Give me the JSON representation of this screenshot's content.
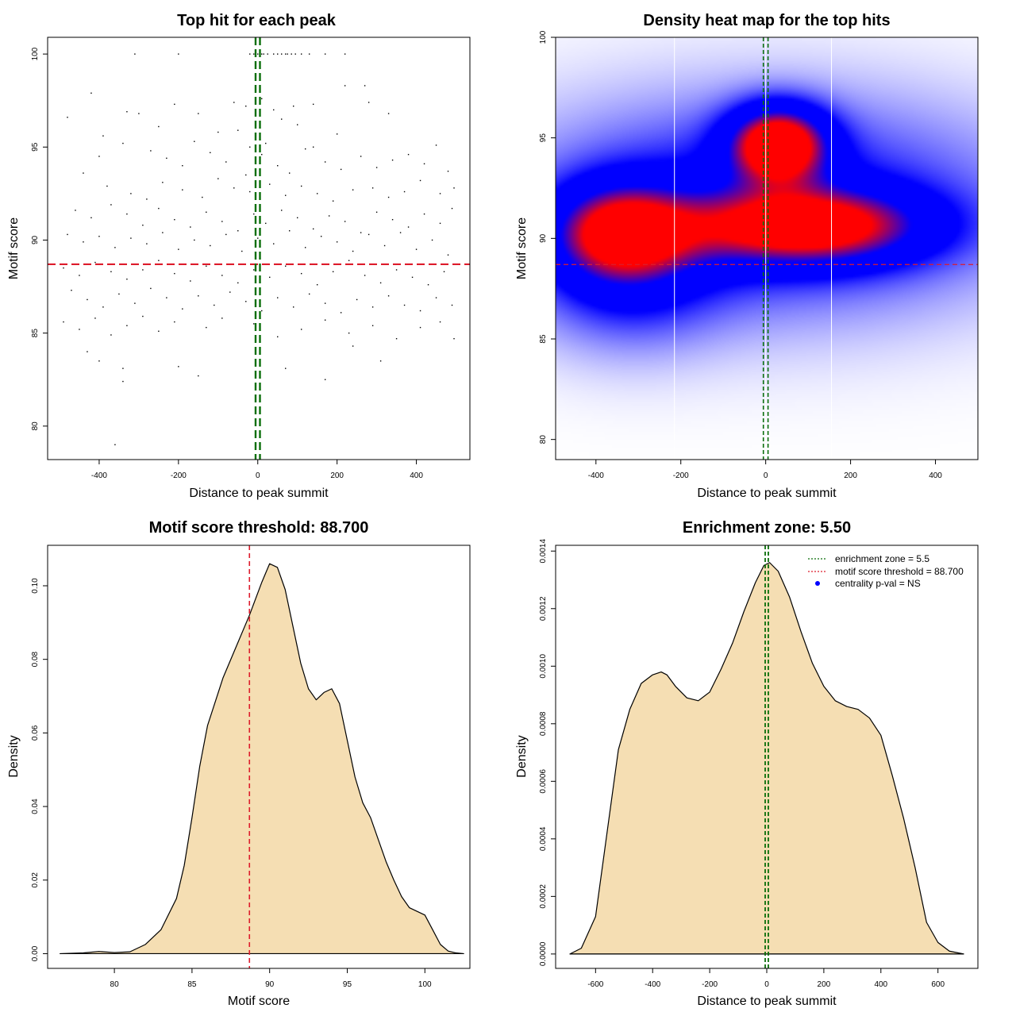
{
  "chart_data": [
    {
      "type": "scatter",
      "title": "Top hit for each peak",
      "xlabel": "Distance to peak summit",
      "ylabel": "Motif score",
      "xlim": [
        -530,
        535
      ],
      "ylim": [
        78.2,
        100.9
      ],
      "x_ticks": [
        -400,
        -200,
        0,
        200,
        400
      ],
      "y_ticks": [
        80,
        85,
        90,
        95,
        100
      ],
      "score_threshold": 88.7,
      "enrichment_zone": [
        -5.5,
        5.5
      ],
      "threshold_color": "#dd1c2c",
      "zone_color": "#0a6e0a",
      "point_color": "#000000",
      "points": [
        [
          -310,
          100
        ],
        [
          -200,
          100
        ],
        [
          -20,
          100
        ],
        [
          -10,
          100
        ],
        [
          -5,
          100
        ],
        [
          0,
          100
        ],
        [
          5,
          100
        ],
        [
          10,
          100
        ],
        [
          15,
          100
        ],
        [
          25,
          100
        ],
        [
          40,
          100
        ],
        [
          50,
          100
        ],
        [
          60,
          100
        ],
        [
          70,
          100
        ],
        [
          75,
          100
        ],
        [
          85,
          100
        ],
        [
          95,
          100
        ],
        [
          110,
          100
        ],
        [
          130,
          100
        ],
        [
          170,
          100
        ],
        [
          220,
          100
        ],
        [
          -420,
          97.9
        ],
        [
          -210,
          97.3
        ],
        [
          -60,
          97.4
        ],
        [
          -30,
          97.2
        ],
        [
          10,
          97.6
        ],
        [
          40,
          97.0
        ],
        [
          90,
          97.2
        ],
        [
          140,
          97.3
        ],
        [
          220,
          98.3
        ],
        [
          270,
          98.3
        ],
        [
          280,
          97.4
        ],
        [
          330,
          96.8
        ],
        [
          -480,
          96.6
        ],
        [
          -390,
          95.6
        ],
        [
          -330,
          96.9
        ],
        [
          -300,
          96.8
        ],
        [
          -250,
          96.1
        ],
        [
          -150,
          96.8
        ],
        [
          -100,
          95.8
        ],
        [
          -50,
          95.9
        ],
        [
          -20,
          95.0
        ],
        [
          20,
          95.2
        ],
        [
          60,
          96.5
        ],
        [
          100,
          96.2
        ],
        [
          140,
          95.0
        ],
        [
          200,
          95.7
        ],
        [
          -400,
          94.5
        ],
        [
          -340,
          95.2
        ],
        [
          -270,
          94.8
        ],
        [
          -230,
          94.4
        ],
        [
          -190,
          94.0
        ],
        [
          -160,
          95.3
        ],
        [
          -120,
          94.7
        ],
        [
          -80,
          94.2
        ],
        [
          -30,
          93.5
        ],
        [
          10,
          94.6
        ],
        [
          50,
          94.0
        ],
        [
          80,
          93.6
        ],
        [
          120,
          94.9
        ],
        [
          170,
          94.2
        ],
        [
          210,
          93.8
        ],
        [
          260,
          94.5
        ],
        [
          300,
          93.9
        ],
        [
          340,
          94.3
        ],
        [
          380,
          94.6
        ],
        [
          420,
          94.1
        ],
        [
          450,
          95.1
        ],
        [
          480,
          93.7
        ],
        [
          -440,
          93.6
        ],
        [
          -380,
          92.9
        ],
        [
          -320,
          92.5
        ],
        [
          -280,
          92.2
        ],
        [
          -240,
          93.1
        ],
        [
          -190,
          92.7
        ],
        [
          -140,
          92.3
        ],
        [
          -100,
          93.3
        ],
        [
          -60,
          92.8
        ],
        [
          -20,
          92.6
        ],
        [
          30,
          93.0
        ],
        [
          70,
          92.4
        ],
        [
          110,
          92.9
        ],
        [
          150,
          92.5
        ],
        [
          190,
          92.1
        ],
        [
          240,
          92.7
        ],
        [
          290,
          92.8
        ],
        [
          330,
          92.3
        ],
        [
          370,
          92.6
        ],
        [
          410,
          93.2
        ],
        [
          460,
          92.5
        ],
        [
          495,
          92.8
        ],
        [
          -460,
          91.6
        ],
        [
          -420,
          91.2
        ],
        [
          -370,
          91.9
        ],
        [
          -330,
          91.4
        ],
        [
          -290,
          90.8
        ],
        [
          -250,
          91.7
        ],
        [
          -210,
          91.1
        ],
        [
          -170,
          90.7
        ],
        [
          -130,
          91.5
        ],
        [
          -90,
          91.0
        ],
        [
          -50,
          90.5
        ],
        [
          -10,
          91.4
        ],
        [
          20,
          90.9
        ],
        [
          60,
          91.6
        ],
        [
          100,
          91.2
        ],
        [
          140,
          90.6
        ],
        [
          180,
          91.3
        ],
        [
          220,
          91.0
        ],
        [
          260,
          90.4
        ],
        [
          300,
          91.5
        ],
        [
          340,
          91.1
        ],
        [
          380,
          90.7
        ],
        [
          420,
          91.4
        ],
        [
          460,
          90.9
        ],
        [
          490,
          91.7
        ],
        [
          -480,
          90.3
        ],
        [
          -440,
          89.9
        ],
        [
          -400,
          90.2
        ],
        [
          -360,
          89.6
        ],
        [
          -320,
          90.1
        ],
        [
          -280,
          89.8
        ],
        [
          -240,
          90.4
        ],
        [
          -200,
          89.5
        ],
        [
          -160,
          90.0
        ],
        [
          -120,
          89.7
        ],
        [
          -80,
          90.3
        ],
        [
          -40,
          89.4
        ],
        [
          0,
          90.1
        ],
        [
          40,
          89.8
        ],
        [
          80,
          90.5
        ],
        [
          120,
          89.6
        ],
        [
          160,
          90.2
        ],
        [
          200,
          89.9
        ],
        [
          240,
          89.4
        ],
        [
          280,
          90.3
        ],
        [
          320,
          89.7
        ],
        [
          360,
          90.4
        ],
        [
          400,
          89.5
        ],
        [
          440,
          90.0
        ],
        [
          480,
          89.2
        ],
        [
          -490,
          88.5
        ],
        [
          -450,
          88.1
        ],
        [
          -410,
          88.8
        ],
        [
          -370,
          88.3
        ],
        [
          -330,
          87.9
        ],
        [
          -290,
          88.4
        ],
        [
          -250,
          88.9
        ],
        [
          -210,
          88.2
        ],
        [
          -170,
          87.8
        ],
        [
          -130,
          88.6
        ],
        [
          -90,
          88.1
        ],
        [
          -50,
          87.7
        ],
        [
          -10,
          88.4
        ],
        [
          30,
          88.0
        ],
        [
          70,
          88.6
        ],
        [
          110,
          88.2
        ],
        [
          150,
          87.6
        ],
        [
          190,
          88.3
        ],
        [
          230,
          88.9
        ],
        [
          270,
          88.1
        ],
        [
          310,
          87.7
        ],
        [
          350,
          88.4
        ],
        [
          390,
          88.0
        ],
        [
          430,
          87.6
        ],
        [
          470,
          88.3
        ],
        [
          -470,
          87.3
        ],
        [
          -430,
          86.8
        ],
        [
          -390,
          86.4
        ],
        [
          -350,
          87.1
        ],
        [
          -310,
          86.6
        ],
        [
          -270,
          87.4
        ],
        [
          -230,
          86.9
        ],
        [
          -190,
          86.3
        ],
        [
          -150,
          87.0
        ],
        [
          -110,
          86.5
        ],
        [
          -70,
          87.2
        ],
        [
          -30,
          86.7
        ],
        [
          10,
          86.2
        ],
        [
          50,
          86.9
        ],
        [
          90,
          86.4
        ],
        [
          130,
          87.1
        ],
        [
          170,
          86.6
        ],
        [
          210,
          86.1
        ],
        [
          250,
          86.8
        ],
        [
          290,
          86.4
        ],
        [
          330,
          87.0
        ],
        [
          370,
          86.5
        ],
        [
          410,
          86.2
        ],
        [
          450,
          86.9
        ],
        [
          490,
          86.5
        ],
        [
          -490,
          85.6
        ],
        [
          -450,
          85.2
        ],
        [
          -410,
          85.8
        ],
        [
          -370,
          84.9
        ],
        [
          -330,
          85.4
        ],
        [
          -290,
          85.9
        ],
        [
          -250,
          85.1
        ],
        [
          -210,
          85.6
        ],
        [
          -130,
          85.3
        ],
        [
          -90,
          85.8
        ],
        [
          -10,
          85.5
        ],
        [
          50,
          84.8
        ],
        [
          110,
          85.2
        ],
        [
          170,
          85.7
        ],
        [
          230,
          85.0
        ],
        [
          290,
          85.4
        ],
        [
          350,
          84.7
        ],
        [
          410,
          85.3
        ],
        [
          460,
          85.6
        ],
        [
          495,
          84.7
        ],
        [
          -430,
          84.0
        ],
        [
          -400,
          83.5
        ],
        [
          -340,
          83.1
        ],
        [
          -340,
          82.4
        ],
        [
          -200,
          83.2
        ],
        [
          -150,
          82.7
        ],
        [
          -5,
          82.6
        ],
        [
          70,
          83.1
        ],
        [
          170,
          82.5
        ],
        [
          240,
          84.3
        ],
        [
          310,
          83.5
        ],
        [
          -360,
          79.0
        ]
      ]
    },
    {
      "type": "heatmap",
      "title": "Density heat map for the top hits",
      "xlabel": "Distance to peak summit",
      "ylabel": "Motif score",
      "xlim": [
        -495,
        500
      ],
      "ylim": [
        79.0,
        100.0
      ],
      "x_ticks": [
        -400,
        -200,
        0,
        200,
        400
      ],
      "y_ticks": [
        80,
        85,
        90,
        95,
        100
      ],
      "score_threshold": 88.7,
      "enrichment_zone": [
        -5.5,
        5.5
      ],
      "white_lines_x": [
        -215,
        0,
        155
      ],
      "threshold_color": "#dd1c2c",
      "zone_color": "#0a6e0a",
      "color_low": "#ffffff",
      "color_mid": "#0000ff",
      "color_high": "#ff0000",
      "density_peaks": [
        {
          "x": 30,
          "y": 94.7,
          "sx": 80,
          "sy": 1.3,
          "w": 1.0
        },
        {
          "x": -340,
          "y": 90.3,
          "sx": 110,
          "sy": 1.6,
          "w": 0.72
        },
        {
          "x": 100,
          "y": 90.6,
          "sx": 190,
          "sy": 1.3,
          "w": 0.82
        },
        {
          "x": 0,
          "y": 91.5,
          "sx": 420,
          "sy": 3.8,
          "w": 0.42
        },
        {
          "x": -330,
          "y": 88.3,
          "sx": 150,
          "sy": 2.6,
          "w": 0.28
        }
      ]
    },
    {
      "type": "area",
      "title": "Motif score threshold: 88.700",
      "xlabel": "Motif score",
      "ylabel": "Density",
      "xlim": [
        75.7,
        102.9
      ],
      "ylim": [
        -0.004,
        0.111
      ],
      "x_ticks": [
        80,
        85,
        90,
        95,
        100
      ],
      "y_ticks": [
        0.0,
        0.02,
        0.04,
        0.06,
        0.08,
        0.1
      ],
      "y_tick_labels": [
        "0.00",
        "0.02",
        "0.04",
        "0.06",
        "0.08",
        "0.10"
      ],
      "threshold": 88.7,
      "threshold_color": "#dd1c2c",
      "fill_color": "#f5deb3",
      "x": [
        76.5,
        78.0,
        79.0,
        80.0,
        81.0,
        82.0,
        83.0,
        84.0,
        84.5,
        85.0,
        85.5,
        86.0,
        87.0,
        88.0,
        88.7,
        89.5,
        90.0,
        90.5,
        91.0,
        91.5,
        92.0,
        92.5,
        93.0,
        93.5,
        94.0,
        94.5,
        95.0,
        95.5,
        96.0,
        96.5,
        97.0,
        97.5,
        98.0,
        98.5,
        99.0,
        99.5,
        100.0,
        100.5,
        101.0,
        101.5,
        102.0,
        102.5
      ],
      "y": [
        0.0,
        0.0002,
        0.0006,
        0.0003,
        0.0005,
        0.0025,
        0.0065,
        0.015,
        0.024,
        0.037,
        0.051,
        0.062,
        0.075,
        0.085,
        0.092,
        0.101,
        0.106,
        0.105,
        0.099,
        0.089,
        0.079,
        0.072,
        0.069,
        0.071,
        0.072,
        0.068,
        0.058,
        0.048,
        0.041,
        0.037,
        0.031,
        0.025,
        0.02,
        0.0155,
        0.0125,
        0.0115,
        0.0105,
        0.0065,
        0.0025,
        0.0007,
        0.0002,
        0.0
      ]
    },
    {
      "type": "area",
      "title": "Enrichment zone: 5.50",
      "xlabel": "Distance to peak summit",
      "ylabel": "Density",
      "xlim": [
        -740,
        740
      ],
      "ylim": [
        -5e-05,
        0.00142
      ],
      "x_ticks": [
        -600,
        -400,
        -200,
        0,
        200,
        400,
        600
      ],
      "y_ticks": [
        0.0,
        0.0002,
        0.0004,
        0.0006,
        0.0008,
        0.001,
        0.0012,
        0.0014
      ],
      "y_tick_labels": [
        "0.0000",
        "0.0002",
        "0.0004",
        "0.0006",
        "0.0008",
        "0.0010",
        "0.0012",
        "0.0014"
      ],
      "enrichment_zone": [
        -5.5,
        5.5
      ],
      "zone_color": "#0a6e0a",
      "fill_color": "#f5deb3",
      "x": [
        -690,
        -650,
        -600,
        -560,
        -520,
        -480,
        -440,
        -400,
        -370,
        -350,
        -320,
        -280,
        -240,
        -200,
        -160,
        -120,
        -80,
        -40,
        -10,
        10,
        40,
        80,
        120,
        160,
        200,
        240,
        280,
        320,
        360,
        400,
        440,
        480,
        520,
        560,
        600,
        640,
        690
      ],
      "y": [
        0.0,
        2e-05,
        0.00013,
        0.00042,
        0.00071,
        0.00085,
        0.00094,
        0.00097,
        0.00098,
        0.00097,
        0.00093,
        0.00089,
        0.00088,
        0.00091,
        0.00099,
        0.00108,
        0.00119,
        0.00129,
        0.00135,
        0.00136,
        0.00133,
        0.00124,
        0.00112,
        0.00101,
        0.00093,
        0.00088,
        0.00086,
        0.00085,
        0.00082,
        0.00076,
        0.00062,
        0.00047,
        0.0003,
        0.00011,
        4e-05,
        1e-05,
        0.0
      ],
      "legend": [
        {
          "label": "enrichment zone = 5.5",
          "kind": "line",
          "color": "#0a6e0a"
        },
        {
          "label": "motif score threshold = 88.700",
          "kind": "line",
          "color": "#dd1c2c"
        },
        {
          "label": "centrality p-val = NS",
          "kind": "point",
          "color": "#0000ff"
        }
      ]
    }
  ]
}
